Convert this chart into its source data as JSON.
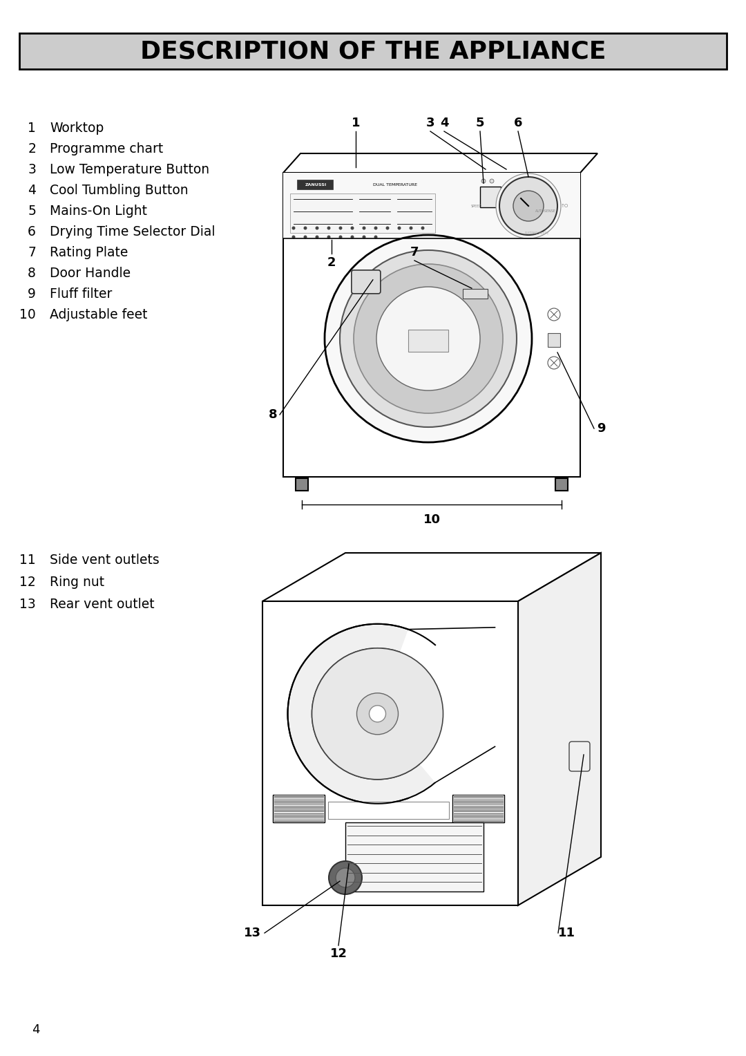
{
  "title": "DESCRIPTION OF THE APPLIANCE",
  "title_bg": "#cccccc",
  "title_color": "#000000",
  "title_fontsize": 26,
  "bg_color": "#ffffff",
  "parts_list_1": [
    [
      1,
      "Worktop"
    ],
    [
      2,
      "Programme chart"
    ],
    [
      3,
      "Low Temperature Button"
    ],
    [
      4,
      "Cool Tumbling Button"
    ],
    [
      5,
      "Mains-On Light"
    ],
    [
      6,
      "Drying Time Selector Dial"
    ],
    [
      7,
      "Rating Plate"
    ],
    [
      8,
      "Door Handle"
    ],
    [
      9,
      "Fluff filter"
    ],
    [
      10,
      "Adjustable feet"
    ]
  ],
  "parts_list_2": [
    [
      11,
      "Side vent outlets"
    ],
    [
      12,
      "Ring nut"
    ],
    [
      13,
      "Rear vent outlet"
    ]
  ],
  "page_number": "4"
}
